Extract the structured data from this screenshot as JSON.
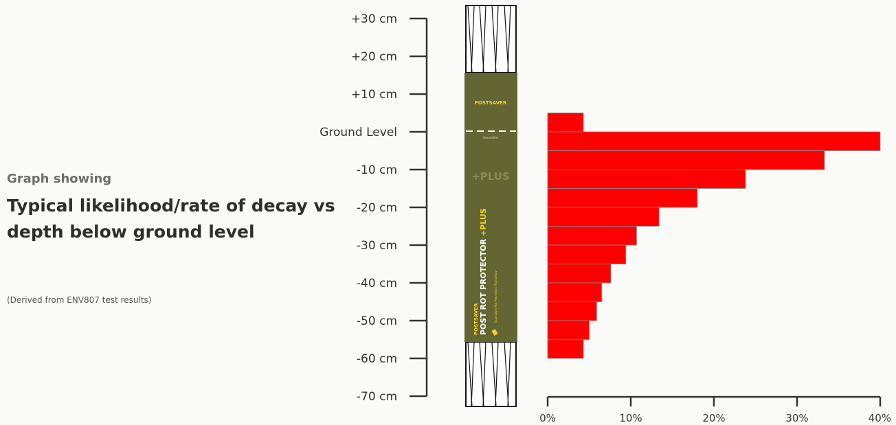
{
  "header": {
    "subtitle": "Graph showing",
    "title": "Typical likelihood/rate of decay vs depth below ground level",
    "note": "(Derived from ENV807 test results)"
  },
  "post": {
    "brand": "POSTSAVER",
    "ground_text": "Groundline",
    "plus_label": "+PLUS",
    "product_brand": "POSTSAVER",
    "product_name": "POST ROT PROTECTOR",
    "product_plus": "+PLUS",
    "product_tagline": "Dual Layer Rot Prevention Technology",
    "sleeve_color": "#636532",
    "accent_color": "#f5d020"
  },
  "chart_data": {
    "type": "bar",
    "orientation": "horizontal",
    "title": "",
    "y_axis": {
      "labels": [
        "+30 cm",
        "+20 cm",
        "+10 cm",
        "Ground Level",
        "-10 cm",
        "-20 cm",
        "-30 cm",
        "-40 cm",
        "-50 cm",
        "-60 cm",
        "-70 cm"
      ],
      "values": [
        30,
        20,
        10,
        0,
        -10,
        -20,
        -30,
        -40,
        -50,
        -60,
        -70
      ]
    },
    "x_axis": {
      "labels": [
        "0%",
        "10%",
        "20%",
        "30%",
        "40%"
      ],
      "values": [
        0,
        10,
        20,
        30,
        40
      ],
      "xlim": [
        0,
        40
      ]
    },
    "bars": [
      {
        "top": 5,
        "bottom": 0,
        "value": 4.3
      },
      {
        "top": 0,
        "bottom": -5,
        "value": 40.0
      },
      {
        "top": -5,
        "bottom": -10,
        "value": 33.3
      },
      {
        "top": -10,
        "bottom": -15,
        "value": 23.8
      },
      {
        "top": -15,
        "bottom": -20,
        "value": 18.0
      },
      {
        "top": -20,
        "bottom": -25,
        "value": 13.4
      },
      {
        "top": -25,
        "bottom": -30,
        "value": 10.7
      },
      {
        "top": -30,
        "bottom": -35,
        "value": 9.4
      },
      {
        "top": -35,
        "bottom": -40,
        "value": 7.6
      },
      {
        "top": -40,
        "bottom": -45,
        "value": 6.5
      },
      {
        "top": -45,
        "bottom": -50,
        "value": 5.9
      },
      {
        "top": -50,
        "bottom": -55,
        "value": 5.0
      },
      {
        "top": -55,
        "bottom": -60,
        "value": 4.3
      }
    ],
    "bar_color": "#ff0000"
  }
}
